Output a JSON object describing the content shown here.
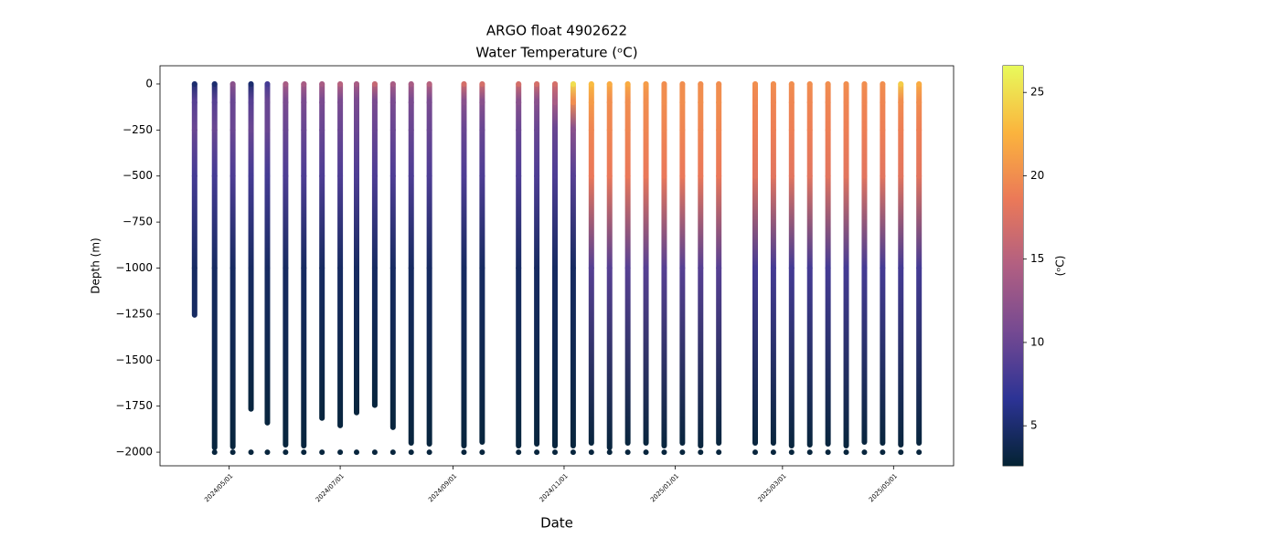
{
  "chart_data": {
    "type": "scatter",
    "title": "ARGO float 4902622",
    "subtitle": "Water Temperature (ᵒC)",
    "x_label": "Date",
    "y_label": "Depth (m)",
    "colorbar_label": "(ᵒC)",
    "xlim": [
      "2024/03/24",
      "2025/06/03"
    ],
    "xticks": [
      "2024/05/01",
      "2024/07/01",
      "2024/09/01",
      "2024/11/01",
      "2025/01/01",
      "2025/03/01",
      "2025/05/01"
    ],
    "ylim": [
      -2074,
      99
    ],
    "yticks": [
      0,
      {
        "value": -250,
        "label": "−250"
      },
      {
        "value": -500,
        "label": "−500"
      },
      {
        "value": -750,
        "label": "−750"
      },
      {
        "value": -1000,
        "label": "−1000"
      },
      {
        "value": -1250,
        "label": "−1250"
      },
      {
        "value": -1500,
        "label": "−1500"
      },
      {
        "value": -1750,
        "label": "−1750"
      },
      {
        "value": -2000,
        "label": "−2000"
      }
    ],
    "clim": [
      2.6,
      26.6
    ],
    "cticks": [
      5,
      10,
      15,
      20,
      25
    ],
    "colormap": [
      "#042333",
      "#2c3395",
      "#744992",
      "#b15f82",
      "#eb7958",
      "#fbb43d",
      "#e8fa5b"
    ],
    "depth_levels": [
      0,
      -100,
      -250,
      -500,
      -1000,
      -2000
    ],
    "profiles": [
      {
        "date": "2024/04/12",
        "max_depth": -1255,
        "temps": [
          5,
          9,
          10,
          8,
          4.5,
          null
        ]
      },
      {
        "date": "2024/04/23",
        "max_depth": -1975,
        "temps": [
          5,
          9,
          10,
          8,
          4.5,
          3
        ]
      },
      {
        "date": "2024/05/03",
        "max_depth": -1970,
        "temps": [
          12,
          10,
          10,
          8.5,
          4.5,
          3
        ]
      },
      {
        "date": "2024/05/13",
        "max_depth": -1765,
        "temps": [
          5,
          9,
          10,
          8,
          4.5,
          3
        ]
      },
      {
        "date": "2024/05/22",
        "max_depth": -1840,
        "temps": [
          8,
          10,
          10,
          8,
          4.5,
          3
        ]
      },
      {
        "date": "2024/06/01",
        "max_depth": -1960,
        "temps": [
          14,
          11,
          10,
          8.5,
          4.5,
          3
        ]
      },
      {
        "date": "2024/06/11",
        "max_depth": -1965,
        "temps": [
          14,
          11,
          10,
          8.5,
          4.5,
          3
        ]
      },
      {
        "date": "2024/06/21",
        "max_depth": -1815,
        "temps": [
          14,
          11,
          10,
          8.5,
          4.5,
          3
        ]
      },
      {
        "date": "2024/07/01",
        "max_depth": -1855,
        "temps": [
          15,
          11,
          10,
          8.5,
          4.5,
          3
        ]
      },
      {
        "date": "2024/07/10",
        "max_depth": -1785,
        "temps": [
          14,
          11,
          10,
          8.5,
          4.5,
          3
        ]
      },
      {
        "date": "2024/07/20",
        "max_depth": -1745,
        "temps": [
          16,
          11,
          10,
          8.5,
          4.5,
          3
        ]
      },
      {
        "date": "2024/07/30",
        "max_depth": -1865,
        "temps": [
          14,
          11,
          10,
          8.5,
          4.5,
          3
        ]
      },
      {
        "date": "2024/08/09",
        "max_depth": -1950,
        "temps": [
          14,
          11,
          10,
          8.5,
          4.5,
          3
        ]
      },
      {
        "date": "2024/08/19",
        "max_depth": -1955,
        "temps": [
          15,
          11,
          10,
          8.5,
          4.5,
          3
        ]
      },
      {
        "date": "2024/09/07",
        "max_depth": -1965,
        "temps": [
          17,
          12,
          10,
          8.5,
          4.5,
          3
        ]
      },
      {
        "date": "2024/09/17",
        "max_depth": -1945,
        "temps": [
          17,
          12,
          10,
          8.5,
          4.5,
          3
        ]
      },
      {
        "date": "2024/10/07",
        "max_depth": -1965,
        "temps": [
          17,
          12,
          10,
          8.5,
          4.5,
          3
        ]
      },
      {
        "date": "2024/10/17",
        "max_depth": -1955,
        "temps": [
          17,
          12,
          10,
          8.5,
          4.5,
          3
        ]
      },
      {
        "date": "2024/10/27",
        "max_depth": -1965,
        "temps": [
          17,
          14,
          10,
          8.5,
          4.5,
          3
        ]
      },
      {
        "date": "2024/11/06",
        "max_depth": -1965,
        "temps": [
          25,
          20,
          12,
          9,
          4.5,
          3
        ]
      },
      {
        "date": "2024/11/16",
        "max_depth": -1950,
        "temps": [
          23,
          21,
          19.5,
          18.5,
          9,
          3
        ]
      },
      {
        "date": "2024/11/26",
        "max_depth": -1975,
        "temps": [
          22,
          20,
          19.5,
          18.5,
          9,
          3
        ]
      },
      {
        "date": "2024/12/06",
        "max_depth": -1950,
        "temps": [
          22,
          20,
          19.5,
          18.5,
          9,
          3
        ]
      },
      {
        "date": "2024/12/16",
        "max_depth": -1950,
        "temps": [
          21,
          20,
          19.5,
          18.5,
          9,
          3
        ]
      },
      {
        "date": "2024/12/26",
        "max_depth": -1965,
        "temps": [
          20,
          20,
          19.5,
          18.5,
          9,
          3
        ]
      },
      {
        "date": "2025/01/05",
        "max_depth": -1950,
        "temps": [
          20,
          20,
          19.5,
          18.5,
          9,
          3
        ]
      },
      {
        "date": "2025/01/15",
        "max_depth": -1965,
        "temps": [
          20,
          20,
          19.5,
          18.5,
          9,
          3
        ]
      },
      {
        "date": "2025/01/25",
        "max_depth": -1950,
        "temps": [
          20,
          20,
          19.5,
          18.5,
          9,
          3
        ]
      },
      {
        "date": "2025/02/14",
        "max_depth": -1950,
        "temps": [
          20,
          19.5,
          19,
          18,
          8,
          3
        ]
      },
      {
        "date": "2025/02/24",
        "max_depth": -1950,
        "temps": [
          20,
          19.5,
          19,
          18,
          8,
          3
        ]
      },
      {
        "date": "2025/03/06",
        "max_depth": -1965,
        "temps": [
          20,
          19.5,
          19,
          18,
          8,
          3
        ]
      },
      {
        "date": "2025/03/16",
        "max_depth": -1960,
        "temps": [
          20,
          19.5,
          19,
          18,
          8,
          3
        ]
      },
      {
        "date": "2025/03/26",
        "max_depth": -1955,
        "temps": [
          20,
          19.5,
          19,
          18,
          8,
          3
        ]
      },
      {
        "date": "2025/04/05",
        "max_depth": -1965,
        "temps": [
          20,
          19.5,
          19,
          18,
          8,
          3
        ]
      },
      {
        "date": "2025/04/15",
        "max_depth": -1945,
        "temps": [
          20,
          19.5,
          19,
          18,
          8,
          3
        ]
      },
      {
        "date": "2025/04/25",
        "max_depth": -1950,
        "temps": [
          20,
          19.5,
          19,
          18,
          8,
          3
        ]
      },
      {
        "date": "2025/05/05",
        "max_depth": -1960,
        "temps": [
          24,
          20,
          19,
          18,
          8,
          3
        ]
      },
      {
        "date": "2025/05/15",
        "max_depth": -1950,
        "temps": [
          22,
          20,
          19,
          18,
          8,
          3
        ]
      }
    ]
  }
}
